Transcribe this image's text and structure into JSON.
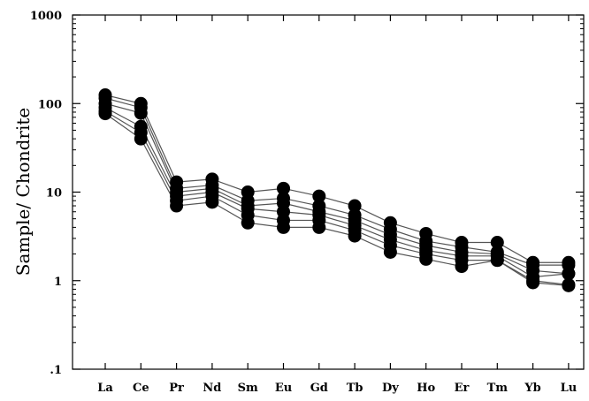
{
  "chart_data": {
    "type": "line",
    "title": "",
    "xlabel": "",
    "ylabel": "Sample/ Chondrite",
    "y_scale": "log",
    "ylim": [
      0.1,
      1000
    ],
    "y_tick_labels": [
      "1000",
      "100",
      "10",
      "1",
      ".1"
    ],
    "y_tick_values": [
      1000,
      100,
      10,
      1,
      0.1
    ],
    "categories": [
      "La",
      "Ce",
      "Pr",
      "Nd",
      "Sm",
      "Eu",
      "Gd",
      "Tb",
      "Dy",
      "Ho",
      "Er",
      "Tm",
      "Yb",
      "Lu"
    ],
    "grid": false,
    "legend": "none",
    "marker": "filled-circle",
    "colors": {
      "line": "#555555",
      "marker": "#000000",
      "axis": "#000000"
    },
    "series": [
      {
        "values": [
          125,
          100,
          13,
          14,
          10,
          11,
          9,
          7,
          4.5,
          3.4,
          2.7,
          2.7,
          1.6,
          1.6
        ]
      },
      {
        "values": [
          115,
          90,
          11,
          12,
          8,
          8.5,
          7,
          5.5,
          3.8,
          2.8,
          2.4,
          2.1,
          1.5,
          1.5
        ]
      },
      {
        "values": [
          100,
          78,
          10,
          11,
          7,
          7.5,
          6,
          4.8,
          3.3,
          2.5,
          2.1,
          2.0,
          1.3,
          1.2
        ]
      },
      {
        "values": [
          90,
          55,
          9,
          10,
          6.5,
          6,
          5.5,
          4.2,
          2.9,
          2.2,
          1.9,
          1.9,
          1.1,
          1.2
        ]
      },
      {
        "values": [
          82,
          47,
          8,
          9,
          5.5,
          4.8,
          4.8,
          3.7,
          2.5,
          2.0,
          1.7,
          1.7,
          1.0,
          0.9
        ]
      },
      {
        "values": [
          77,
          40,
          7,
          7.7,
          4.5,
          4.0,
          4.0,
          3.2,
          2.1,
          1.75,
          1.45,
          1.7,
          0.95,
          0.88
        ]
      }
    ]
  }
}
